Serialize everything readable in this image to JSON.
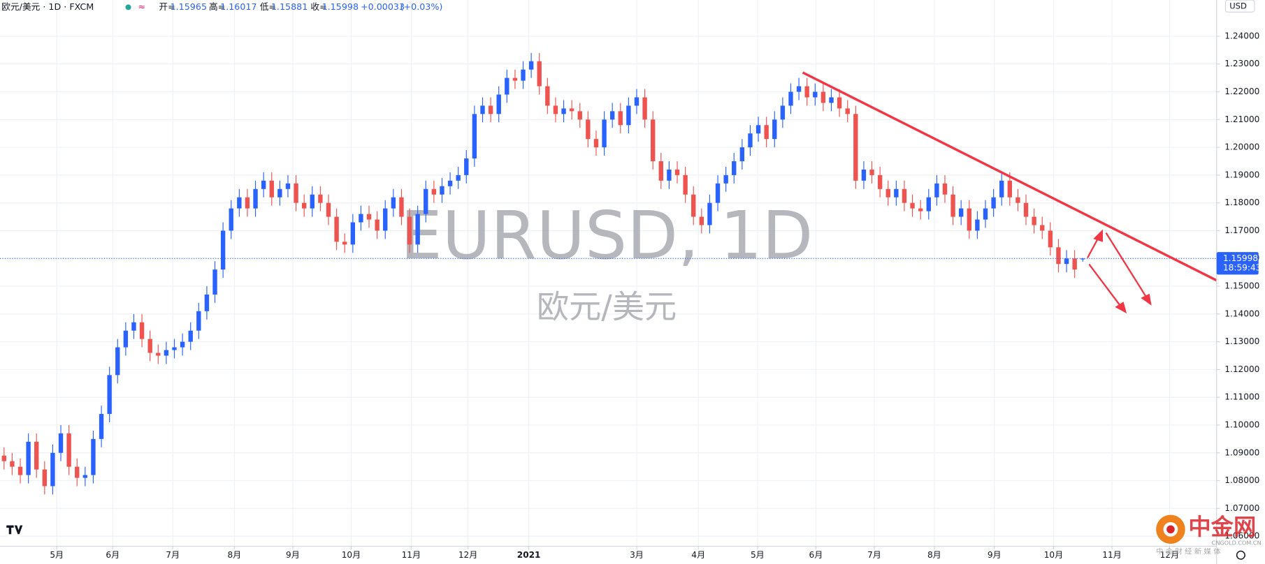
{
  "header": {
    "symbol": "欧元/美元 · 1D · FXCM",
    "open_label": "开=",
    "high_label": "高=",
    "low_label": "低=",
    "close_label": "收=",
    "change": "+0.00033",
    "change_pct": "(+0.03%)"
  },
  "chart_data": {
    "type": "candlestick",
    "watermark": "EURUSD, 1D",
    "watermark_sub": "欧元/美元",
    "currency": "USD",
    "countdown": "18:59:43",
    "up_color": "#2962ff",
    "down_color": "#ef5350",
    "grid": true,
    "open": [
      1.089,
      1.087,
      1.085,
      1.082,
      1.094,
      1.084,
      1.078,
      1.09,
      1.097,
      1.085,
      1.081,
      1.082,
      1.095,
      1.104,
      1.118,
      1.128,
      1.134,
      1.137,
      1.131,
      1.126,
      1.125,
      1.127,
      1.128,
      1.13,
      1.134,
      1.141,
      1.147,
      1.156,
      1.17,
      1.178,
      1.182,
      1.178,
      1.185,
      1.188,
      1.182,
      1.185,
      1.187,
      1.18,
      1.178,
      1.183,
      1.18,
      1.175,
      1.166,
      1.165,
      1.173,
      1.176,
      1.174,
      1.17,
      1.178,
      1.182,
      1.175,
      1.165,
      1.176,
      1.185,
      1.183,
      1.186,
      1.188,
      1.19,
      1.196,
      1.212,
      1.215,
      1.212,
      1.219,
      1.225,
      1.224,
      1.228,
      1.231,
      1.222,
      1.215,
      1.212,
      1.214,
      1.213,
      1.21,
      1.203,
      1.2,
      1.21,
      1.213,
      1.208,
      1.215,
      1.218,
      1.21,
      1.195,
      1.188,
      1.192,
      1.19,
      1.183,
      1.175,
      1.172,
      1.18,
      1.187,
      1.19,
      1.195,
      1.2,
      1.205,
      1.208,
      1.203,
      1.21,
      1.215,
      1.22,
      1.222,
      1.218,
      1.22,
      1.216,
      1.218,
      1.214,
      1.212,
      1.188,
      1.192,
      1.19,
      1.185,
      1.182,
      1.185,
      1.18,
      1.178,
      1.177,
      1.182,
      1.187,
      1.183,
      1.175,
      1.178,
      1.17,
      1.174,
      1.178,
      1.182,
      1.188,
      1.182,
      1.18,
      1.175,
      1.172,
      1.17,
      1.164,
      1.158,
      1.16,
      1.15965
    ],
    "high": [
      1.092,
      1.09,
      1.088,
      1.097,
      1.097,
      1.087,
      1.093,
      1.1,
      1.1,
      1.088,
      1.085,
      1.098,
      1.107,
      1.121,
      1.131,
      1.137,
      1.14,
      1.14,
      1.134,
      1.129,
      1.13,
      1.131,
      1.133,
      1.137,
      1.144,
      1.15,
      1.159,
      1.173,
      1.181,
      1.185,
      1.185,
      1.188,
      1.191,
      1.191,
      1.188,
      1.19,
      1.19,
      1.183,
      1.186,
      1.186,
      1.183,
      1.178,
      1.169,
      1.176,
      1.179,
      1.179,
      1.177,
      1.181,
      1.185,
      1.185,
      1.178,
      1.179,
      1.188,
      1.188,
      1.189,
      1.191,
      1.193,
      1.199,
      1.215,
      1.218,
      1.218,
      1.222,
      1.228,
      1.228,
      1.231,
      1.234,
      1.234,
      1.225,
      1.218,
      1.217,
      1.217,
      1.216,
      1.213,
      1.206,
      1.213,
      1.216,
      1.216,
      1.218,
      1.221,
      1.221,
      1.213,
      1.198,
      1.195,
      1.195,
      1.193,
      1.186,
      1.178,
      1.183,
      1.19,
      1.193,
      1.198,
      1.203,
      1.208,
      1.211,
      1.211,
      1.213,
      1.218,
      1.223,
      1.225,
      1.225,
      1.223,
      1.223,
      1.221,
      1.221,
      1.217,
      1.215,
      1.195,
      1.195,
      1.193,
      1.188,
      1.188,
      1.188,
      1.183,
      1.181,
      1.185,
      1.19,
      1.19,
      1.186,
      1.181,
      1.181,
      1.177,
      1.181,
      1.185,
      1.191,
      1.191,
      1.185,
      1.183,
      1.178,
      1.175,
      1.173,
      1.167,
      1.163,
      1.163,
      1.16017
    ],
    "low": [
      1.084,
      1.082,
      1.079,
      1.079,
      1.081,
      1.075,
      1.075,
      1.087,
      1.082,
      1.078,
      1.078,
      1.079,
      1.092,
      1.101,
      1.115,
      1.125,
      1.131,
      1.128,
      1.123,
      1.122,
      1.122,
      1.124,
      1.125,
      1.127,
      1.131,
      1.138,
      1.144,
      1.153,
      1.167,
      1.175,
      1.175,
      1.175,
      1.182,
      1.179,
      1.179,
      1.182,
      1.177,
      1.175,
      1.175,
      1.177,
      1.172,
      1.163,
      1.162,
      1.162,
      1.17,
      1.171,
      1.167,
      1.167,
      1.175,
      1.172,
      1.162,
      1.162,
      1.173,
      1.18,
      1.18,
      1.183,
      1.185,
      1.187,
      1.193,
      1.209,
      1.209,
      1.209,
      1.216,
      1.221,
      1.221,
      1.225,
      1.219,
      1.212,
      1.209,
      1.209,
      1.21,
      1.207,
      1.2,
      1.197,
      1.197,
      1.207,
      1.205,
      1.205,
      1.212,
      1.207,
      1.192,
      1.185,
      1.185,
      1.187,
      1.18,
      1.172,
      1.169,
      1.169,
      1.177,
      1.184,
      1.187,
      1.192,
      1.197,
      1.202,
      1.2,
      1.2,
      1.207,
      1.212,
      1.217,
      1.215,
      1.215,
      1.213,
      1.213,
      1.211,
      1.209,
      1.185,
      1.185,
      1.187,
      1.182,
      1.179,
      1.179,
      1.177,
      1.175,
      1.174,
      1.174,
      1.179,
      1.18,
      1.172,
      1.172,
      1.167,
      1.167,
      1.171,
      1.175,
      1.179,
      1.179,
      1.177,
      1.172,
      1.169,
      1.167,
      1.161,
      1.155,
      1.155,
      1.153,
      1.15881
    ],
    "close": [
      1.087,
      1.085,
      1.082,
      1.094,
      1.084,
      1.078,
      1.09,
      1.097,
      1.085,
      1.081,
      1.082,
      1.095,
      1.104,
      1.118,
      1.128,
      1.134,
      1.137,
      1.131,
      1.126,
      1.125,
      1.127,
      1.128,
      1.13,
      1.134,
      1.141,
      1.147,
      1.156,
      1.17,
      1.178,
      1.182,
      1.178,
      1.185,
      1.188,
      1.182,
      1.185,
      1.187,
      1.18,
      1.178,
      1.183,
      1.18,
      1.175,
      1.166,
      1.165,
      1.173,
      1.176,
      1.174,
      1.17,
      1.178,
      1.182,
      1.175,
      1.165,
      1.176,
      1.185,
      1.183,
      1.186,
      1.188,
      1.19,
      1.196,
      1.212,
      1.215,
      1.212,
      1.219,
      1.225,
      1.224,
      1.228,
      1.231,
      1.222,
      1.215,
      1.212,
      1.214,
      1.213,
      1.21,
      1.203,
      1.2,
      1.21,
      1.213,
      1.208,
      1.215,
      1.218,
      1.21,
      1.195,
      1.188,
      1.192,
      1.19,
      1.183,
      1.175,
      1.172,
      1.18,
      1.187,
      1.19,
      1.195,
      1.2,
      1.205,
      1.208,
      1.203,
      1.21,
      1.215,
      1.22,
      1.222,
      1.218,
      1.22,
      1.216,
      1.218,
      1.214,
      1.212,
      1.188,
      1.192,
      1.19,
      1.185,
      1.182,
      1.185,
      1.18,
      1.178,
      1.177,
      1.182,
      1.187,
      1.183,
      1.175,
      1.178,
      1.17,
      1.174,
      1.178,
      1.182,
      1.188,
      1.182,
      1.18,
      1.175,
      1.172,
      1.17,
      1.164,
      1.158,
      1.16,
      1.156,
      1.15998
    ],
    "xlim": [
      -0.5,
      149.5
    ],
    "xticks": [
      {
        "value": 6.5,
        "label": "5月"
      },
      {
        "value": 13.4,
        "label": "6月"
      },
      {
        "value": 20.8,
        "label": "7月"
      },
      {
        "value": 28.4,
        "label": "8月"
      },
      {
        "value": 35.6,
        "label": "9月"
      },
      {
        "value": 42.8,
        "label": "10月"
      },
      {
        "value": 50.2,
        "label": "11月"
      },
      {
        "value": 57.2,
        "label": "12月"
      },
      {
        "value": 64.7,
        "label": "2021"
      },
      {
        "value": 78.0,
        "label": "3月"
      },
      {
        "value": 85.6,
        "label": "4月"
      },
      {
        "value": 92.9,
        "label": "5月"
      },
      {
        "value": 100.1,
        "label": "6月"
      },
      {
        "value": 107.3,
        "label": "7月"
      },
      {
        "value": 114.7,
        "label": "8月"
      },
      {
        "value": 122.1,
        "label": "9月"
      },
      {
        "value": 129.4,
        "label": "10月"
      },
      {
        "value": 136.6,
        "label": "11月"
      },
      {
        "value": 143.7,
        "label": "12月"
      }
    ],
    "ylim": [
      1.05636,
      1.25305
    ],
    "yticks": [
      {
        "value": 1.06,
        "label": "1.06000"
      },
      {
        "value": 1.07,
        "label": "1.07000"
      },
      {
        "value": 1.08,
        "label": "1.08000"
      },
      {
        "value": 1.09,
        "label": "1.09000"
      },
      {
        "value": 1.1,
        "label": "1.10000"
      },
      {
        "value": 1.11,
        "label": "1.11000"
      },
      {
        "value": 1.12,
        "label": "1.12000"
      },
      {
        "value": 1.13,
        "label": "1.13000"
      },
      {
        "value": 1.14,
        "label": "1.14000"
      },
      {
        "value": 1.15,
        "label": "1.15000"
      },
      {
        "value": 1.16,
        "label": "1.16000"
      },
      {
        "value": 1.17,
        "label": "1.17000"
      },
      {
        "value": 1.18,
        "label": "1.18000"
      },
      {
        "value": 1.19,
        "label": "1.19000"
      },
      {
        "value": 1.2,
        "label": "1.20000"
      },
      {
        "value": 1.21,
        "label": "1.21000"
      },
      {
        "value": 1.22,
        "label": "1.22000"
      },
      {
        "value": 1.23,
        "label": "1.23000"
      },
      {
        "value": 1.24,
        "label": "1.24000"
      }
    ]
  },
  "logo": {
    "name": "中金网",
    "domain": "CNGOLD.COM.CN",
    "tagline": "中 金 财 经 新 媒 体"
  }
}
